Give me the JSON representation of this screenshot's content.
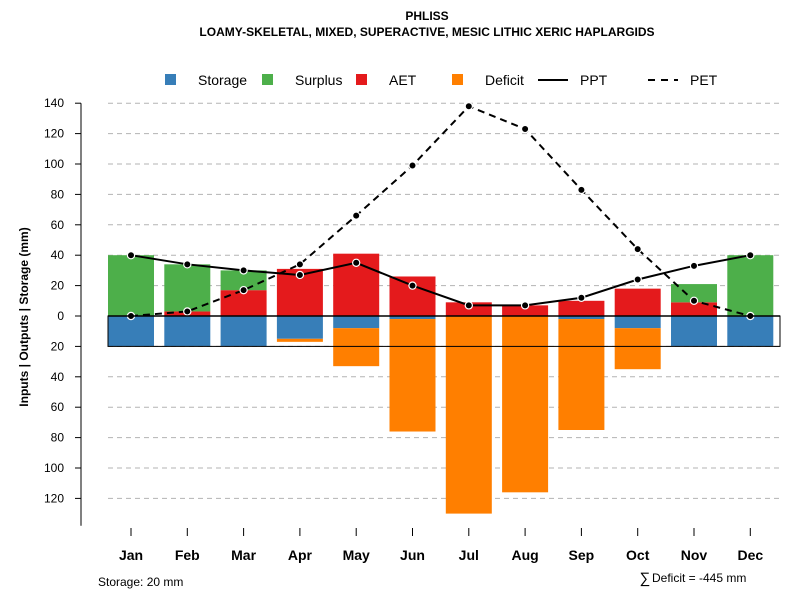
{
  "chart_data": {
    "type": "bar",
    "title": "PHLISS",
    "subtitle": "LOAMY-SKELETAL, MIXED, SUPERACTIVE, MESIC LITHIC XERIC HAPLARGIDS",
    "ylabel": "Inputs | Outputs | Storage    (mm)",
    "categories": [
      "Jan",
      "Feb",
      "Mar",
      "Apr",
      "May",
      "Jun",
      "Jul",
      "Aug",
      "Sep",
      "Oct",
      "Nov",
      "Dec"
    ],
    "ylim": [
      -140,
      140
    ],
    "yticks_top": [
      0,
      20,
      40,
      60,
      80,
      100,
      120,
      140
    ],
    "yticks_bottom": [
      20,
      40,
      60,
      80,
      100,
      120
    ],
    "grid": true,
    "legend": {
      "placement": "top",
      "entries": [
        {
          "label": "Storage",
          "kind": "box",
          "color": "#377EB8"
        },
        {
          "label": "Surplus",
          "kind": "box",
          "color": "#4DAF4A"
        },
        {
          "label": "AET",
          "kind": "box",
          "color": "#E41A1C"
        },
        {
          "label": "Deficit",
          "kind": "box",
          "color": "#FF7F00"
        },
        {
          "label": "PPT",
          "kind": "solid-line",
          "color": "#000000"
        },
        {
          "label": "PET",
          "kind": "dashed-line",
          "color": "#000000"
        }
      ]
    },
    "series": [
      {
        "name": "Surplus",
        "color": "#4DAF4A",
        "values": [
          40,
          31,
          13,
          0,
          0,
          0,
          0,
          0,
          0,
          0,
          12,
          40
        ]
      },
      {
        "name": "AET",
        "color": "#E41A1C",
        "values": [
          0,
          3,
          17,
          31,
          41,
          26,
          9,
          7,
          10,
          18,
          9,
          0
        ]
      },
      {
        "name": "Storage",
        "color": "#377EB8",
        "values": [
          20,
          20,
          20,
          15,
          8,
          2,
          0,
          0,
          2,
          8,
          20,
          20
        ]
      },
      {
        "name": "Deficit",
        "color": "#FF7F00",
        "values": [
          0,
          0,
          0,
          2,
          25,
          74,
          130,
          116,
          73,
          27,
          0,
          0
        ]
      },
      {
        "name": "PPT",
        "color": "#000000",
        "style": "solid",
        "values": [
          40,
          34,
          30,
          27,
          35,
          20,
          7,
          7,
          12,
          24,
          33,
          40
        ]
      },
      {
        "name": "PET",
        "color": "#000000",
        "style": "dashed",
        "values": [
          0,
          3,
          17,
          34,
          66,
          99,
          138,
          123,
          83,
          44,
          10,
          0
        ]
      }
    ],
    "storage_capacity": 20,
    "annotations": {
      "storage_note": "Storage: 20 mm",
      "deficit_symbol": "∑",
      "deficit_note": "Deficit = -445 mm"
    }
  }
}
